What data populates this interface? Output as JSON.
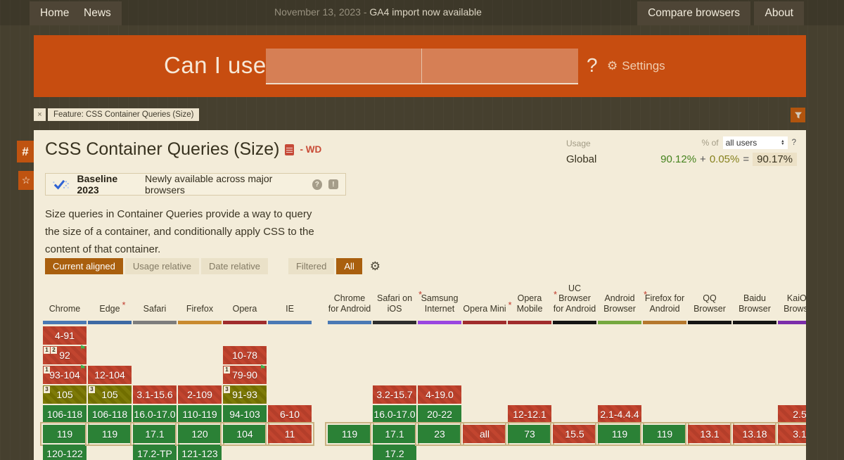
{
  "topnav": {
    "home": "Home",
    "news": "News",
    "date_prefix": "November 13, 2023 - ",
    "announcement": "GA4 import now available",
    "compare": "Compare browsers",
    "about": "About"
  },
  "header": {
    "logo": "Can I use",
    "question_mark": "?",
    "settings_label": "Settings",
    "gear_icon": "⚙"
  },
  "feature_tag": {
    "close": "×",
    "label": "Feature: CSS Container Queries (Size)"
  },
  "sidebar": {
    "hash": "#",
    "star": "☆"
  },
  "page": {
    "title": "CSS Container Queries (Size)",
    "spec_status": "- WD",
    "description": "Size queries in Container Queries provide a way to query the size of a container, and conditionally apply CSS to the content of that container."
  },
  "usage": {
    "label": "Usage",
    "percent_of": "% of",
    "select_value": "all users",
    "help": "?",
    "scope": "Global",
    "supported": "90.12%",
    "plus": "+",
    "partial": "0.05%",
    "equals": "=",
    "total": "90.17%"
  },
  "baseline": {
    "title": "Baseline 2023",
    "subtitle": "Newly available across major browsers",
    "help": "?",
    "feedback": "!"
  },
  "controls": {
    "current_aligned": "Current aligned",
    "usage_relative": "Usage relative",
    "date_relative": "Date relative",
    "filtered": "Filtered",
    "all": "All",
    "gear_icon": "⚙"
  },
  "colors": {
    "accent_orange": "#c74d10",
    "supported_green": "#2b8136",
    "unsupported_red": "#c2452f",
    "partial_olive": "#7e7b08",
    "current_row_outline": "#c9b283"
  },
  "table": {
    "columns": [
      {
        "id": "chrome",
        "group": "desktop",
        "index": 0,
        "name": "Chrome",
        "asterisk": false,
        "bar_color": "#4a79b4",
        "cells": [
          {
            "row": 0,
            "version": "4-91",
            "support": "n"
          },
          {
            "row": 1,
            "version": "92",
            "support": "n",
            "notes": [
              "1",
              "2"
            ],
            "flag": true
          },
          {
            "row": 2,
            "version": "93-104",
            "support": "n",
            "notes": [
              "1"
            ],
            "flag": true
          },
          {
            "row": 3,
            "version": "105",
            "support": "a",
            "notes": [
              "3"
            ]
          },
          {
            "row": 4,
            "version": "106-118",
            "support": "y"
          },
          {
            "row": 5,
            "version": "119",
            "support": "y",
            "current": true
          },
          {
            "row": 6,
            "version": "120-122",
            "support": "y"
          }
        ]
      },
      {
        "id": "edge",
        "group": "desktop",
        "index": 1,
        "name": "Edge",
        "asterisk": true,
        "bar_color": "#3d69a3",
        "cells": [
          {
            "row": 2,
            "version": "12-104",
            "support": "n"
          },
          {
            "row": 3,
            "version": "105",
            "support": "a",
            "notes": [
              "3"
            ]
          },
          {
            "row": 4,
            "version": "106-118",
            "support": "y"
          },
          {
            "row": 5,
            "version": "119",
            "support": "y",
            "current": true
          }
        ]
      },
      {
        "id": "safari",
        "group": "desktop",
        "index": 2,
        "name": "Safari",
        "asterisk": false,
        "bar_color": "#7d7d7d",
        "cells": [
          {
            "row": 3,
            "version": "3.1-15.6",
            "support": "n"
          },
          {
            "row": 4,
            "version": "16.0-17.0",
            "support": "y"
          },
          {
            "row": 5,
            "version": "17.1",
            "support": "y",
            "current": true
          },
          {
            "row": 6,
            "version": "17.2-TP",
            "support": "y"
          }
        ]
      },
      {
        "id": "firefox",
        "group": "desktop",
        "index": 3,
        "name": "Firefox",
        "asterisk": false,
        "bar_color": "#c98a2e",
        "cells": [
          {
            "row": 3,
            "version": "2-109",
            "support": "n"
          },
          {
            "row": 4,
            "version": "110-119",
            "support": "y"
          },
          {
            "row": 5,
            "version": "120",
            "support": "y",
            "current": true
          },
          {
            "row": 6,
            "version": "121-123",
            "support": "y"
          }
        ]
      },
      {
        "id": "opera",
        "group": "desktop",
        "index": 4,
        "name": "Opera",
        "asterisk": false,
        "bar_color": "#a02c2c",
        "cells": [
          {
            "row": 1,
            "version": "10-78",
            "support": "n"
          },
          {
            "row": 2,
            "version": "79-90",
            "support": "n",
            "notes": [
              "1"
            ],
            "flag": true
          },
          {
            "row": 3,
            "version": "91-93",
            "support": "a",
            "notes": [
              "3"
            ]
          },
          {
            "row": 4,
            "version": "94-103",
            "support": "y"
          },
          {
            "row": 5,
            "version": "104",
            "support": "y",
            "current": true
          }
        ]
      },
      {
        "id": "ie",
        "group": "desktop",
        "index": 5,
        "name": "IE",
        "asterisk": false,
        "bar_color": "#4a79b4",
        "cells": [
          {
            "row": 4,
            "version": "6-10",
            "support": "n"
          },
          {
            "row": 5,
            "version": "11",
            "support": "n",
            "current": true
          }
        ]
      },
      {
        "id": "and_chr",
        "group": "mobile",
        "index": 0,
        "name": "Chrome for Android",
        "asterisk": false,
        "bar_color": "#4a79b4",
        "cells": [
          {
            "row": 5,
            "version": "119",
            "support": "y",
            "current": true
          }
        ]
      },
      {
        "id": "ios_saf",
        "group": "mobile",
        "index": 1,
        "name": "Safari on iOS",
        "asterisk": true,
        "bar_color": "#2e2e2e",
        "cells": [
          {
            "row": 3,
            "version": "3.2-15.7",
            "support": "n"
          },
          {
            "row": 4,
            "version": "16.0-17.0",
            "support": "y"
          },
          {
            "row": 5,
            "version": "17.1",
            "support": "y",
            "current": true
          },
          {
            "row": 6,
            "version": "17.2",
            "support": "y"
          }
        ]
      },
      {
        "id": "samsung",
        "group": "mobile",
        "index": 2,
        "name": "Samsung Internet",
        "asterisk": false,
        "bar_color": "#9a46e0",
        "cells": [
          {
            "row": 3,
            "version": "4-19.0",
            "support": "n"
          },
          {
            "row": 4,
            "version": "20-22",
            "support": "y"
          },
          {
            "row": 5,
            "version": "23",
            "support": "y",
            "current": true
          }
        ]
      },
      {
        "id": "op_mini",
        "group": "mobile",
        "index": 3,
        "name": "Opera Mini",
        "asterisk": true,
        "bar_color": "#a02c2c",
        "cells": [
          {
            "row": 5,
            "version": "all",
            "support": "n",
            "current": true
          }
        ]
      },
      {
        "id": "op_mob",
        "group": "mobile",
        "index": 4,
        "name": "Opera Mobile",
        "asterisk": true,
        "bar_color": "#a02c2c",
        "cells": [
          {
            "row": 4,
            "version": "12-12.1",
            "support": "n"
          },
          {
            "row": 5,
            "version": "73",
            "support": "y",
            "current": true
          }
        ]
      },
      {
        "id": "and_uc",
        "group": "mobile",
        "index": 5,
        "name": "UC Browser for Android",
        "asterisk": false,
        "bar_color": "#151515",
        "cells": [
          {
            "row": 5,
            "version": "15.5",
            "support": "n",
            "current": true
          }
        ]
      },
      {
        "id": "android",
        "group": "mobile",
        "index": 6,
        "name": "Android Browser",
        "asterisk": true,
        "bar_color": "#74a83e",
        "cells": [
          {
            "row": 4,
            "version": "2.1-4.4.4",
            "support": "n"
          },
          {
            "row": 5,
            "version": "119",
            "support": "y",
            "current": true
          }
        ]
      },
      {
        "id": "and_ff",
        "group": "mobile",
        "index": 7,
        "name": "Firefox for Android",
        "asterisk": false,
        "bar_color": "#b5782d",
        "cells": [
          {
            "row": 5,
            "version": "119",
            "support": "y",
            "current": true
          }
        ]
      },
      {
        "id": "and_qq",
        "group": "mobile",
        "index": 8,
        "name": "QQ Browser",
        "asterisk": false,
        "bar_color": "#151515",
        "cells": [
          {
            "row": 5,
            "version": "13.1",
            "support": "n",
            "current": true
          }
        ]
      },
      {
        "id": "baidu",
        "group": "mobile",
        "index": 9,
        "name": "Baidu Browser",
        "asterisk": false,
        "bar_color": "#151515",
        "cells": [
          {
            "row": 5,
            "version": "13.18",
            "support": "n",
            "current": true
          }
        ]
      },
      {
        "id": "kaios",
        "group": "mobile",
        "index": 10,
        "name": "KaiOS Browser",
        "asterisk": false,
        "bar_color": "#7b2daa",
        "cells": [
          {
            "row": 4,
            "version": "2.5",
            "support": "n"
          },
          {
            "row": 5,
            "version": "3.1",
            "support": "n",
            "current": true
          }
        ]
      }
    ]
  }
}
